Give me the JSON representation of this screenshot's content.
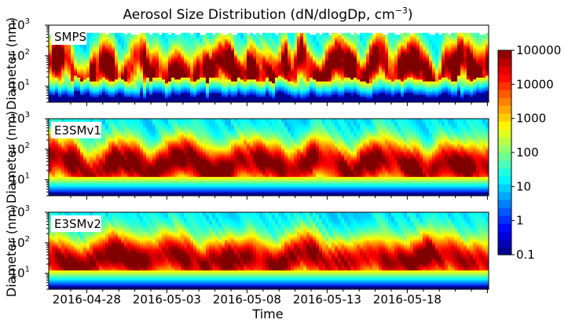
{
  "chart_data": {
    "type": "heatmap",
    "title_main": "Aerosol Size Distribution (dN/dlogDp, cm",
    "title_sup": "−3",
    "title_close": ")",
    "xlabel": "Time",
    "ylabel": "Diameter (nm)",
    "y_scale": "log",
    "ylim": [
      3,
      1000
    ],
    "y_ticks": [
      {
        "base": "10",
        "exp": "1"
      },
      {
        "base": "10",
        "exp": "2"
      },
      {
        "base": "10",
        "exp": "3"
      }
    ],
    "x_ticks": [
      "2016-04-28",
      "2016-05-03",
      "2016-05-08",
      "2016-05-13",
      "2016-05-18"
    ],
    "xlim_days_label": "2016-04-24 to 2016-05-22",
    "colorbar": {
      "scale": "log",
      "colormap": "jet",
      "ticks": [
        "100000",
        "10000",
        "1000",
        "100",
        "10",
        "1",
        "0.1"
      ],
      "min": 0.1,
      "max": 100000
    },
    "panels": [
      {
        "label": "SMPS",
        "kind": "observation"
      },
      {
        "label": "E3SMv1",
        "kind": "model"
      },
      {
        "label": "E3SMv2",
        "kind": "model"
      }
    ]
  }
}
